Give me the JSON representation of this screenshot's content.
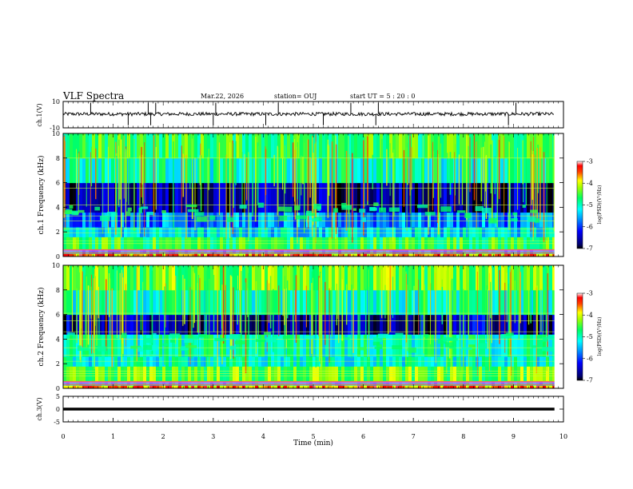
{
  "header": {
    "title": "VLF Spectra",
    "date": "Mar.22, 2026",
    "station": "station= OUJ",
    "start_ut": "start  UT  =  5  : 20 : 0"
  },
  "chart_data": [
    {
      "type": "line",
      "name": "ch1-waveform",
      "ylabel": "ch.1(V)",
      "ylim": [
        -10,
        10
      ],
      "yticks": [
        "10",
        "-10"
      ],
      "baseline": 0.5,
      "noise": 0.6,
      "spike_times_min": [
        0.55,
        1.3,
        1.7,
        1.75,
        1.85,
        3.0,
        3.05,
        4.05,
        4.3,
        5.2,
        5.75,
        6.25,
        6.3,
        8.9,
        9.05
      ]
    },
    {
      "type": "heatmap",
      "name": "ch1-spectrogram",
      "ylabel": "ch.1 Frequency (kHz)",
      "xlim": [
        0,
        9.8
      ],
      "ylim": [
        0,
        10
      ],
      "yticks": [
        "0",
        "2",
        "4",
        "6",
        "8",
        "10"
      ],
      "colorbar": {
        "label": "log(PSD)(V²/Hz)",
        "range": [
          -7,
          -3
        ],
        "ticks": [
          "-3",
          "-4",
          "-5",
          "-6",
          "-7"
        ]
      },
      "bands_khz": [
        {
          "from": 0.0,
          "to": 0.25,
          "level": -3.6
        },
        {
          "from": 0.25,
          "to": 0.6,
          "level": -5.3
        },
        {
          "from": 0.6,
          "to": 1.6,
          "level": -4.6
        },
        {
          "from": 1.6,
          "to": 2.4,
          "level": -5.3
        },
        {
          "from": 2.4,
          "to": 3.6,
          "level": -5.7
        },
        {
          "from": 3.6,
          "to": 6.0,
          "level": -6.6
        },
        {
          "from": 6.0,
          "to": 8.0,
          "level": -5.0
        },
        {
          "from": 8.0,
          "to": 10.0,
          "level": -4.6
        }
      ]
    },
    {
      "type": "heatmap",
      "name": "ch2-spectrogram",
      "ylabel": "ch.2 Frequency (kHz)",
      "xlim": [
        0,
        9.8
      ],
      "ylim": [
        0,
        10
      ],
      "yticks": [
        "0",
        "2",
        "4",
        "6",
        "8",
        "10"
      ],
      "colorbar": {
        "label": "log(PSD)(V²/Hz)",
        "range": [
          -7,
          -3
        ],
        "ticks": [
          "-3",
          "-4",
          "-5",
          "-6",
          "-7"
        ]
      },
      "bands_khz": [
        {
          "from": 0.0,
          "to": 0.25,
          "level": -3.6
        },
        {
          "from": 0.25,
          "to": 0.6,
          "level": -5.2
        },
        {
          "from": 0.6,
          "to": 1.8,
          "level": -4.4
        },
        {
          "from": 1.8,
          "to": 2.6,
          "level": -5.1
        },
        {
          "from": 2.6,
          "to": 4.4,
          "level": -5.0
        },
        {
          "from": 4.4,
          "to": 6.0,
          "level": -6.5
        },
        {
          "from": 6.0,
          "to": 8.0,
          "level": -5.0
        },
        {
          "from": 8.0,
          "to": 10.0,
          "level": -4.4
        }
      ]
    },
    {
      "type": "line",
      "name": "ch3-waveform",
      "ylabel": "ch.3(V)",
      "ylim": [
        -5,
        5
      ],
      "yticks": [
        "5",
        "0",
        "-5"
      ],
      "baseline": 0,
      "noise": 0
    }
  ],
  "xaxis": {
    "label": "Time  (min)",
    "xlim": [
      0,
      10
    ],
    "ticks": [
      "0",
      "1",
      "2",
      "3",
      "4",
      "5",
      "6",
      "7",
      "8",
      "9",
      "10"
    ]
  },
  "colors": {
    "background": "#000050",
    "ch3_line": "#000000"
  }
}
